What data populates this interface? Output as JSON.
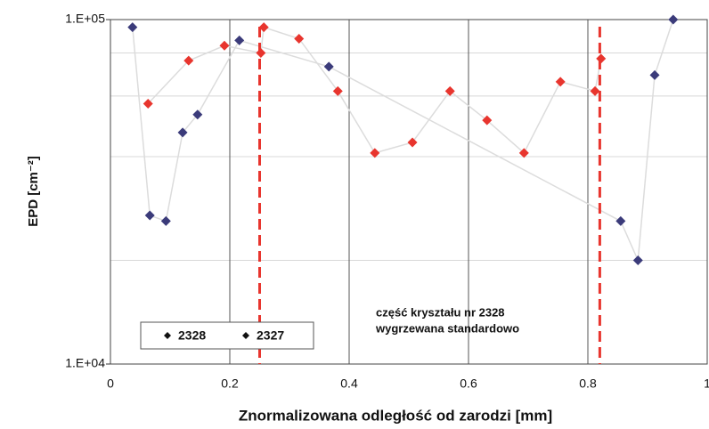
{
  "chart_data": {
    "type": "scatter",
    "x_label": "Znormalizowana odległość od zarodzi [mm]",
    "y_label": "EPD [cm⁻²]",
    "log_y": true,
    "grid": true,
    "xlim": [
      0,
      1
    ],
    "xticks": [
      0,
      0.2,
      0.4,
      0.6,
      0.8,
      1
    ],
    "ylim": [
      10000,
      100000
    ],
    "yticks": [
      {
        "value": 10000,
        "label": "1.E+04"
      },
      {
        "value": 100000,
        "label": "1.E+05"
      }
    ],
    "minor_yticks": [
      20000,
      40000,
      60000,
      80000
    ],
    "vlines": [
      0.25,
      0.82
    ],
    "vline_color": "#e8352e",
    "legend_position": "lower left",
    "annotation": [
      "część kryształu nr 2328",
      "wygrzewana standardowo"
    ],
    "series": [
      {
        "name": "2328",
        "color": "#3b3b7a",
        "x": [
          0.037,
          0.066,
          0.093,
          0.121,
          0.146,
          0.216,
          0.366,
          0.855,
          0.884,
          0.912,
          0.943
        ],
        "values": [
          95000,
          27000,
          26000,
          47000,
          53000,
          87000,
          73000,
          26000,
          20000,
          69000,
          100000
        ]
      },
      {
        "name": "2327",
        "color": "#e8352e",
        "x": [
          0.063,
          0.131,
          0.191,
          0.252,
          0.257,
          0.316,
          0.381,
          0.443,
          0.506,
          0.569,
          0.631,
          0.693,
          0.754,
          0.812,
          0.822
        ],
        "values": [
          57000,
          76000,
          84000,
          80000,
          95000,
          88000,
          62000,
          41000,
          44000,
          62000,
          51000,
          41000,
          66000,
          62000,
          77000
        ]
      }
    ]
  }
}
